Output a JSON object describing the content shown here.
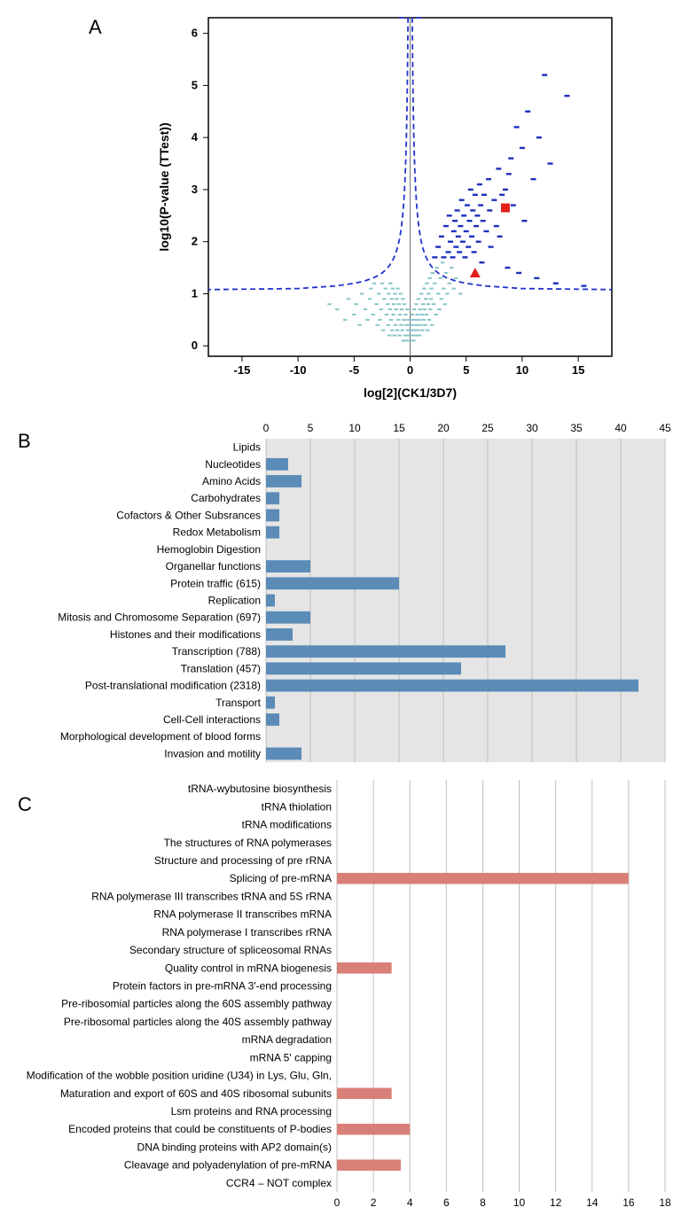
{
  "panelA": {
    "label": "A",
    "type": "scatter",
    "xlabel": "log[2](CK1/3D7)",
    "ylabel": "log10(P-value (TTest))",
    "xlim": [
      -18,
      18
    ],
    "ylim": [
      -0.2,
      6.3
    ],
    "xticks": [
      -15,
      -10,
      -5,
      0,
      5,
      10,
      15
    ],
    "yticks": [
      0,
      1,
      2,
      3,
      4,
      5,
      6
    ],
    "background_color": "#ffffff",
    "threshold_color": "#2233cc",
    "nonsig_color": "#87c4c9",
    "sig_color": "#1e2fbf",
    "highlight_color": "#e3211a",
    "nonsig_points": [
      [
        -7.2,
        0.8
      ],
      [
        -6.5,
        0.7
      ],
      [
        -5.8,
        0.5
      ],
      [
        -5.5,
        0.9
      ],
      [
        -5.0,
        0.6
      ],
      [
        -4.8,
        0.8
      ],
      [
        -4.5,
        0.4
      ],
      [
        -4.3,
        1.0
      ],
      [
        -4.0,
        0.7
      ],
      [
        -3.8,
        0.5
      ],
      [
        -3.6,
        0.9
      ],
      [
        -3.5,
        1.1
      ],
      [
        -3.3,
        0.6
      ],
      [
        -3.2,
        1.2
      ],
      [
        -3.0,
        0.8
      ],
      [
        -2.9,
        0.4
      ],
      [
        -2.8,
        1.0
      ],
      [
        -2.7,
        0.5
      ],
      [
        -2.6,
        0.7
      ],
      [
        -2.5,
        1.2
      ],
      [
        -2.4,
        0.3
      ],
      [
        -2.3,
        0.9
      ],
      [
        -2.2,
        1.1
      ],
      [
        -2.1,
        0.6
      ],
      [
        -2.0,
        0.8
      ],
      [
        -1.95,
        0.4
      ],
      [
        -1.9,
        1.0
      ],
      [
        -1.85,
        0.2
      ],
      [
        -1.8,
        0.7
      ],
      [
        -1.75,
        1.2
      ],
      [
        -1.7,
        0.5
      ],
      [
        -1.65,
        0.9
      ],
      [
        -1.6,
        0.3
      ],
      [
        -1.55,
        1.1
      ],
      [
        -1.5,
        0.6
      ],
      [
        -1.45,
        0.8
      ],
      [
        -1.4,
        0.2
      ],
      [
        -1.35,
        1.0
      ],
      [
        -1.3,
        0.4
      ],
      [
        -1.25,
        0.7
      ],
      [
        -1.2,
        0.9
      ],
      [
        -1.15,
        0.3
      ],
      [
        -1.1,
        1.1
      ],
      [
        -1.05,
        0.5
      ],
      [
        -1.0,
        0.8
      ],
      [
        -0.95,
        0.2
      ],
      [
        -0.9,
        0.6
      ],
      [
        -0.85,
        1.0
      ],
      [
        -0.8,
        0.4
      ],
      [
        -0.75,
        0.7
      ],
      [
        -0.7,
        0.3
      ],
      [
        -0.65,
        0.9
      ],
      [
        -0.6,
        0.1
      ],
      [
        -0.55,
        0.5
      ],
      [
        -0.5,
        0.8
      ],
      [
        -0.45,
        0.2
      ],
      [
        -0.4,
        0.6
      ],
      [
        -0.35,
        0.4
      ],
      [
        -0.3,
        0.1
      ],
      [
        -0.25,
        0.7
      ],
      [
        -0.2,
        0.3
      ],
      [
        -0.15,
        0.5
      ],
      [
        -0.1,
        0.2
      ],
      [
        -0.05,
        0.4
      ],
      [
        0.0,
        0.1
      ],
      [
        0.05,
        0.3
      ],
      [
        0.1,
        0.5
      ],
      [
        0.15,
        0.2
      ],
      [
        0.2,
        0.6
      ],
      [
        0.25,
        0.4
      ],
      [
        0.3,
        0.1
      ],
      [
        0.35,
        0.7
      ],
      [
        0.4,
        0.3
      ],
      [
        0.45,
        0.5
      ],
      [
        0.5,
        0.2
      ],
      [
        0.55,
        0.8
      ],
      [
        0.6,
        0.4
      ],
      [
        0.65,
        0.6
      ],
      [
        0.7,
        0.3
      ],
      [
        0.75,
        0.9
      ],
      [
        0.8,
        0.5
      ],
      [
        0.85,
        0.2
      ],
      [
        0.9,
        0.7
      ],
      [
        0.95,
        0.4
      ],
      [
        1.0,
        1.0
      ],
      [
        1.05,
        0.6
      ],
      [
        1.1,
        0.3
      ],
      [
        1.15,
        0.8
      ],
      [
        1.2,
        0.5
      ],
      [
        1.25,
        1.1
      ],
      [
        1.3,
        0.7
      ],
      [
        1.35,
        0.4
      ],
      [
        1.4,
        0.9
      ],
      [
        1.45,
        0.6
      ],
      [
        1.5,
        1.2
      ],
      [
        1.55,
        0.3
      ],
      [
        1.6,
        0.8
      ],
      [
        1.65,
        1.0
      ],
      [
        1.7,
        0.5
      ],
      [
        1.75,
        1.3
      ],
      [
        1.8,
        0.7
      ],
      [
        1.85,
        0.9
      ],
      [
        1.9,
        1.1
      ],
      [
        1.95,
        0.4
      ],
      [
        2.0,
        1.4
      ],
      [
        2.1,
        0.8
      ],
      [
        2.2,
        1.2
      ],
      [
        2.3,
        0.6
      ],
      [
        2.4,
        1.5
      ],
      [
        2.5,
        1.0
      ],
      [
        2.6,
        0.7
      ],
      [
        2.7,
        1.3
      ],
      [
        2.8,
        0.9
      ],
      [
        2.9,
        1.6
      ],
      [
        3.0,
        1.1
      ],
      [
        3.1,
        0.8
      ],
      [
        3.2,
        1.4
      ],
      [
        3.3,
        1.0
      ],
      [
        3.5,
        1.2
      ],
      [
        3.7,
        1.5
      ],
      [
        3.9,
        1.1
      ],
      [
        4.1,
        1.3
      ],
      [
        4.5,
        1.0
      ]
    ],
    "sig_points": [
      [
        2.2,
        1.7
      ],
      [
        2.5,
        1.9
      ],
      [
        2.8,
        2.1
      ],
      [
        3.0,
        1.7
      ],
      [
        3.2,
        2.3
      ],
      [
        3.4,
        1.8
      ],
      [
        3.5,
        2.5
      ],
      [
        3.6,
        2.0
      ],
      [
        3.8,
        1.7
      ],
      [
        3.9,
        2.2
      ],
      [
        4.0,
        2.4
      ],
      [
        4.1,
        1.9
      ],
      [
        4.2,
        2.6
      ],
      [
        4.3,
        2.1
      ],
      [
        4.4,
        1.8
      ],
      [
        4.5,
        2.3
      ],
      [
        4.6,
        2.8
      ],
      [
        4.7,
        2.0
      ],
      [
        4.8,
        2.5
      ],
      [
        4.9,
        1.7
      ],
      [
        5.0,
        2.2
      ],
      [
        5.1,
        2.7
      ],
      [
        5.2,
        1.9
      ],
      [
        5.3,
        2.4
      ],
      [
        5.4,
        3.0
      ],
      [
        5.5,
        2.1
      ],
      [
        5.6,
        2.6
      ],
      [
        5.7,
        1.8
      ],
      [
        5.8,
        2.9
      ],
      [
        5.9,
        2.3
      ],
      [
        6.0,
        2.5
      ],
      [
        6.1,
        2.0
      ],
      [
        6.2,
        3.1
      ],
      [
        6.3,
        2.7
      ],
      [
        6.4,
        1.6
      ],
      [
        6.5,
        2.4
      ],
      [
        6.6,
        2.9
      ],
      [
        6.8,
        2.2
      ],
      [
        7.0,
        3.2
      ],
      [
        7.1,
        2.6
      ],
      [
        7.2,
        1.9
      ],
      [
        7.5,
        2.8
      ],
      [
        7.7,
        2.3
      ],
      [
        7.9,
        3.4
      ],
      [
        8.0,
        2.1
      ],
      [
        8.2,
        2.9
      ],
      [
        8.5,
        3.0
      ],
      [
        8.7,
        1.5
      ],
      [
        8.8,
        3.3
      ],
      [
        9.0,
        3.6
      ],
      [
        9.2,
        2.7
      ],
      [
        9.5,
        4.2
      ],
      [
        9.7,
        1.4
      ],
      [
        10.0,
        3.8
      ],
      [
        10.2,
        2.4
      ],
      [
        10.5,
        4.5
      ],
      [
        11.0,
        3.2
      ],
      [
        11.3,
        1.3
      ],
      [
        11.5,
        4.0
      ],
      [
        12.0,
        5.2
      ],
      [
        12.5,
        3.5
      ],
      [
        13.0,
        1.2
      ],
      [
        14.0,
        4.8
      ],
      [
        15.5,
        1.15
      ]
    ],
    "highlight_square": [
      8.5,
      2.65
    ],
    "highlight_triangle": [
      5.8,
      1.4
    ]
  },
  "panelB": {
    "label": "B",
    "type": "bar",
    "xlim": [
      0,
      45
    ],
    "xticks": [
      0,
      5,
      10,
      15,
      20,
      25,
      30,
      35,
      40,
      45
    ],
    "bar_color": "#5b8bb7",
    "background_color": "#e5e5e5",
    "grid_color": "#bfbfbf",
    "label_fontsize": 12,
    "categories": [
      "Lipids",
      "Nucleotides",
      "Amino Acids",
      "Carbohydrates",
      "Cofactors & Other Subsrances",
      "Redox Metabolism",
      "Hemoglobin Digestion",
      "Organellar functions",
      "Protein traffic (615)",
      "Replication",
      "Mitosis and Chromosome Separation (697)",
      "Histones and their modifications",
      "Transcription (788)",
      "Translation (457)",
      "Post-translational modification (2318)",
      "Transport",
      "Cell-Cell interactions",
      "Morphological development of blood forms",
      "Invasion and motility"
    ],
    "values": [
      0,
      2.5,
      4,
      1.5,
      1.5,
      1.5,
      0,
      5,
      15,
      1,
      5,
      3,
      27,
      22,
      42,
      1,
      1.5,
      0,
      4
    ]
  },
  "panelC": {
    "label": "C",
    "type": "bar",
    "xlim": [
      0,
      18
    ],
    "xticks": [
      0,
      2,
      4,
      6,
      8,
      10,
      12,
      14,
      16,
      18
    ],
    "bar_color": "#d87f78",
    "background_color": "#ffffff",
    "grid_color": "#bfbfbf",
    "label_fontsize": 12,
    "categories": [
      "tRNA-wybutosine biosynthesis",
      "tRNA thiolation",
      "tRNA modifications",
      "The structures of RNA polymerases",
      "Structure and processing of pre rRNA",
      "Splicing of pre-mRNA",
      "RNA polymerase III transcribes tRNA and 5S rRNA",
      "RNA polymerase II transcribes mRNA",
      "RNA polymerase I transcribes rRNA",
      "Secondary structure of spliceosomal RNAs",
      "Quality control in mRNA biogenesis",
      "Protein factors in pre-mRNA 3'-end processing",
      "Pre-ribosomial particles along the 60S assembly pathway",
      "Pre-ribosomal particles along the 40S assembly pathway",
      "mRNA degradation",
      "mRNA 5' capping",
      "Modification of the wobble position uridine (U34) in Lys, Glu, Gln,",
      "Maturation and export of 60S and 40S ribosomal subunits",
      "Lsm proteins and RNA processing",
      "Encoded proteins that could be constituents of P-bodies",
      "DNA binding proteins with AP2 domain(s)",
      "Cleavage and polyadenylation of pre-mRNA",
      "CCR4 – NOT complex"
    ],
    "values": [
      0,
      0,
      0,
      0,
      0,
      16,
      0,
      0,
      0,
      0,
      3,
      0,
      0,
      0,
      0,
      0,
      0,
      3,
      0,
      4,
      0,
      3.5,
      0
    ]
  }
}
